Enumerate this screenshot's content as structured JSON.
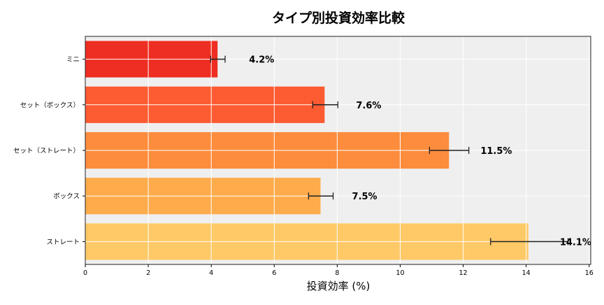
{
  "chart_data": {
    "type": "bar",
    "orientation": "horizontal",
    "title": "タイプ別投資効率比較",
    "xlabel": "投資効率 (%)",
    "ylabel": "",
    "xlim": [
      0,
      16.05
    ],
    "xticks": [
      0,
      2,
      4,
      6,
      8,
      10,
      12,
      14,
      16
    ],
    "grid": true,
    "background": "#efefef",
    "categories": [
      "ミニ",
      "セット（ボックス）",
      "セット（ストレート）",
      "ボックス",
      "ストレート"
    ],
    "values": [
      4.2,
      7.6,
      11.55,
      7.47,
      14.07
    ],
    "error_low": [
      3.98,
      7.22,
      10.93,
      7.09,
      12.87
    ],
    "error_high": [
      4.44,
      8.02,
      12.18,
      7.87,
      15.33
    ],
    "data_labels": [
      "4.2%",
      "7.6%",
      "11.5%",
      "7.5%",
      "14.1%"
    ],
    "colors": [
      "#ee2e22",
      "#fd5b31",
      "#fd8c3d",
      "#feab4b",
      "#fec966"
    ]
  }
}
